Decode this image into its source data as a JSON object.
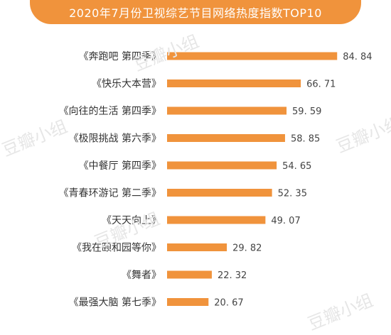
{
  "chart_data": {
    "type": "bar",
    "orientation": "horizontal",
    "title": "2020年7月份卫视综艺节目网络热度指数TOP10",
    "categories": [
      "《奔跑吧 第四季》",
      "《快乐大本营》",
      "《向往的生活 第四季》",
      "《极限挑战 第六季》",
      "《中餐厅 第四季》",
      "《青春环游记 第二季》",
      "《天天向上》",
      "《我在颐和园等你》",
      "《舞者》",
      "《最强大脑 第七季》"
    ],
    "values": [
      84.84,
      66.71,
      59.59,
      58.85,
      54.65,
      52.35,
      49.07,
      29.82,
      22.32,
      20.67
    ],
    "value_labels": [
      "84. 84",
      "66. 71",
      "59. 59",
      "58. 85",
      "54. 65",
      "52. 35",
      "49. 07",
      "29. 82",
      "22. 32",
      "20. 67"
    ],
    "xlim": [
      0,
      100
    ],
    "bar_color": "#f0933c",
    "grid": false,
    "legend": "none"
  },
  "watermark": {
    "text": "豆瓣小组",
    "color": "#e6e6e6"
  },
  "colors": {
    "accent": "#f0933c",
    "title_text": "#ffffff",
    "label_text": "#333333"
  }
}
